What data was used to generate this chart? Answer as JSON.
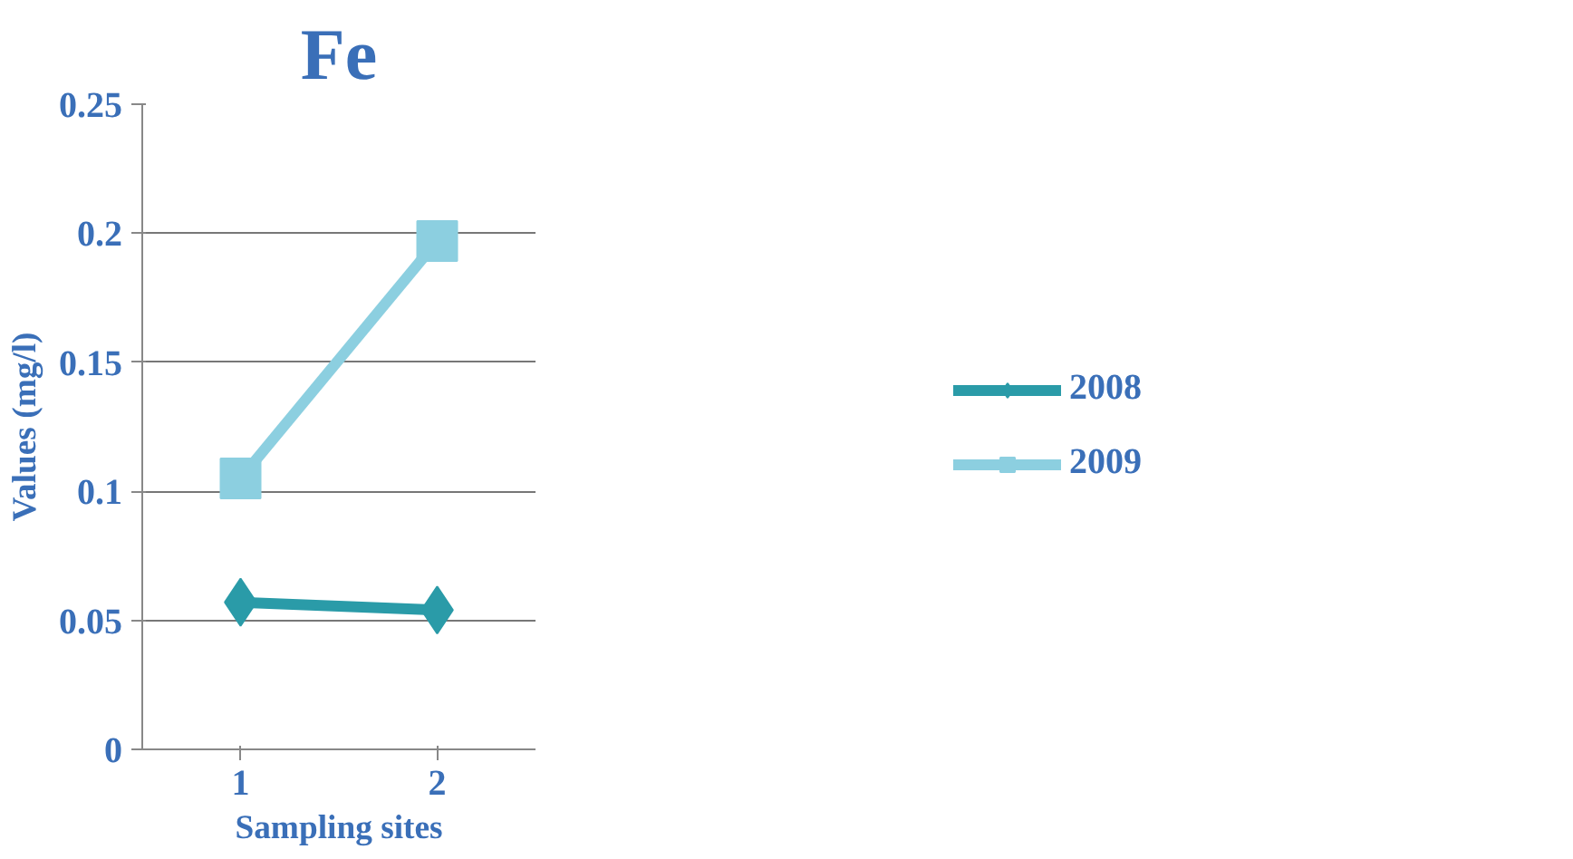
{
  "chart_data": {
    "type": "line",
    "title": "Fe",
    "xlabel": "Sampling sites",
    "ylabel": "Values (mg/l)",
    "categories": [
      "1",
      "2"
    ],
    "series": [
      {
        "name": "2008",
        "color": "#2a9ba8",
        "values": [
          0.057,
          0.054
        ],
        "marker": "diamond"
      },
      {
        "name": "2009",
        "color": "#8ccfe0",
        "values": [
          0.105,
          0.197
        ],
        "marker": "square"
      }
    ],
    "ylim": [
      0,
      0.25
    ],
    "yticks": [
      0,
      0.05,
      0.1,
      0.15,
      0.2,
      0.25
    ],
    "grid": "y",
    "legend": "right",
    "line_style": "solid"
  }
}
